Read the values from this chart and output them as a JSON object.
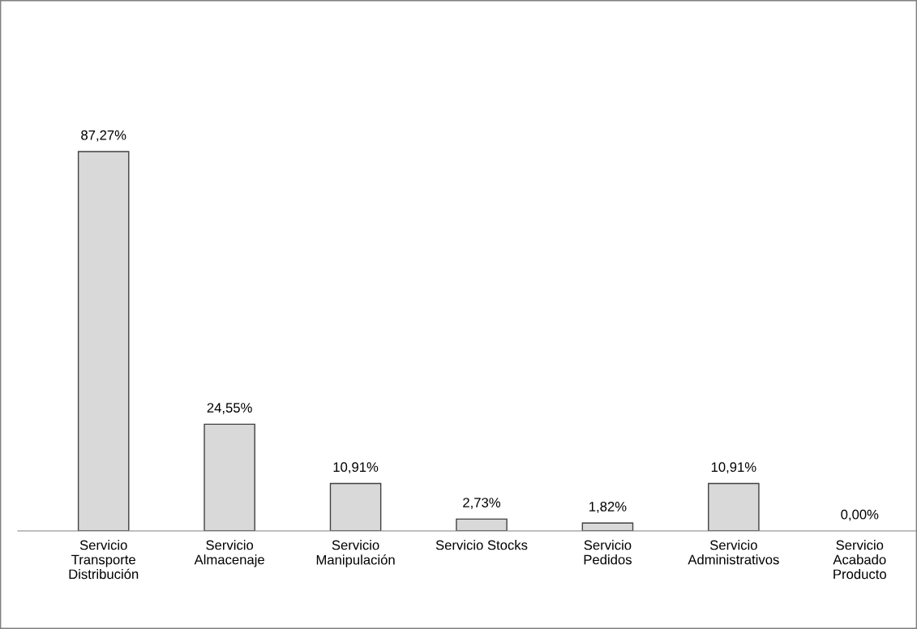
{
  "chart_data": {
    "type": "bar",
    "categories": [
      "Servicio\nTransporte\nDistribución",
      "Servicio\nAlmacenaje",
      "Servicio\nManipulación",
      "Servicio Stocks",
      "Servicio\nPedidos",
      "Servicio\nAdministrativos",
      "Servicio\nAcabado\nProducto"
    ],
    "values": [
      87.27,
      24.55,
      10.91,
      2.73,
      1.82,
      10.91,
      0.0
    ],
    "value_labels": [
      "87,27%",
      "24,55%",
      "10,91%",
      "2,73%",
      "1,82%",
      "10,91%",
      "0,00%"
    ],
    "color": "#d9d9d9",
    "grid": false,
    "legend": false,
    "tick_labels": "x"
  }
}
